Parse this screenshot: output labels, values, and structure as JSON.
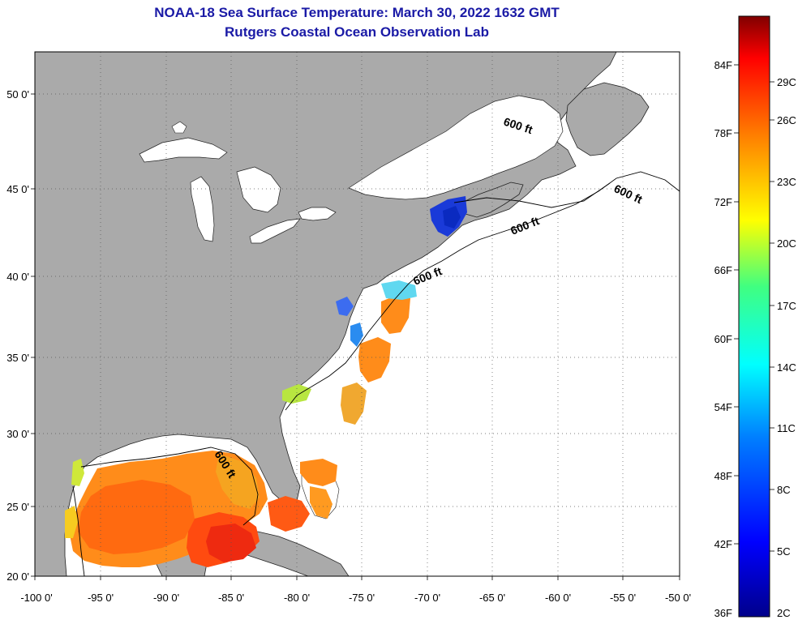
{
  "header": {
    "title": "NOAA-18 Sea Surface Temperature:  March 30, 2022 1632 GMT",
    "subtitle": "Rutgers Coastal Ocean Observation Lab"
  },
  "map": {
    "longitude_range": [
      -100,
      -50
    ],
    "latitude_range": [
      20,
      52.5
    ],
    "lon_ticks": [
      "-100 0'",
      "-95 0'",
      "-90 0'",
      "-85 0'",
      "-80 0'",
      "-75 0'",
      "-70 0'",
      "-65 0'",
      "-60 0'",
      "-55 0'",
      "-50 0'"
    ],
    "lat_ticks": [
      "20 0'",
      "25 0'",
      "30 0'",
      "35 0'",
      "40 0'",
      "45 0'",
      "50 0'"
    ],
    "isobath_labels": [
      "600 ft",
      "600 ft",
      "600 ft",
      "600 ft",
      "600 ft"
    ],
    "colors": {
      "land": "#aaaaaa",
      "no_data": "#ffffff",
      "grid": "#555555"
    }
  },
  "colorbar": {
    "fahrenheit_labels": [
      "84F",
      "78F",
      "72F",
      "66F",
      "60F",
      "54F",
      "48F",
      "42F",
      "36F"
    ],
    "celsius_labels": [
      "29C",
      "26C",
      "23C",
      "20C",
      "17C",
      "14C",
      "11C",
      "8C",
      "5C",
      "2C"
    ],
    "colors": [
      "#00008b",
      "#0000ff",
      "#0080ff",
      "#00ffff",
      "#40ff80",
      "#ffff00",
      "#ff8000",
      "#ff0000",
      "#800000"
    ]
  }
}
